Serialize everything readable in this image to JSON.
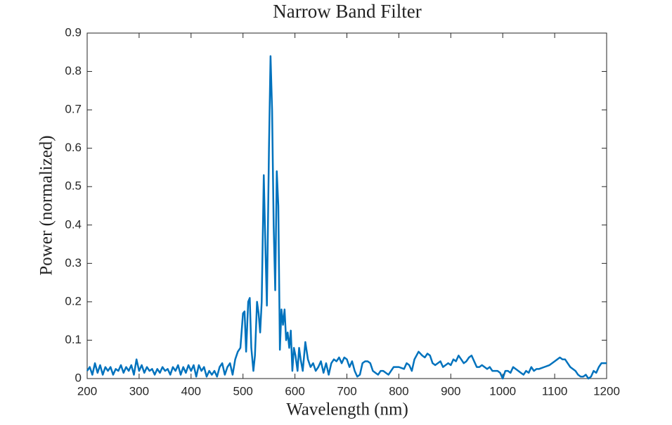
{
  "chart_data": {
    "type": "line",
    "title": "Narrow Band Filter",
    "xlabel": "Wavelength (nm)",
    "ylabel": "Power (normalized)",
    "color": "#0072bd",
    "x": [
      200,
      205,
      210,
      215,
      220,
      225,
      230,
      235,
      240,
      245,
      250,
      255,
      260,
      265,
      270,
      275,
      280,
      285,
      290,
      295,
      300,
      305,
      310,
      315,
      320,
      325,
      330,
      335,
      340,
      345,
      350,
      355,
      360,
      365,
      370,
      375,
      380,
      385,
      390,
      395,
      400,
      405,
      410,
      415,
      420,
      425,
      430,
      435,
      440,
      445,
      450,
      455,
      460,
      465,
      470,
      475,
      480,
      485,
      490,
      495,
      500,
      503,
      506,
      510,
      513,
      516,
      520,
      523,
      527,
      530,
      533,
      536,
      540,
      543,
      546,
      550,
      553,
      556,
      559,
      562,
      565,
      568,
      571,
      574,
      577,
      580,
      583,
      586,
      589,
      592,
      595,
      598,
      601,
      605,
      608,
      611,
      615,
      620,
      625,
      630,
      635,
      640,
      645,
      650,
      655,
      660,
      665,
      670,
      675,
      680,
      685,
      690,
      695,
      700,
      705,
      710,
      715,
      720,
      725,
      730,
      735,
      740,
      745,
      750,
      755,
      760,
      765,
      770,
      775,
      780,
      785,
      790,
      795,
      800,
      810,
      815,
      820,
      825,
      830,
      838,
      845,
      850,
      855,
      860,
      865,
      870,
      880,
      885,
      890,
      895,
      900,
      905,
      910,
      915,
      920,
      925,
      930,
      935,
      940,
      945,
      950,
      955,
      960,
      965,
      970,
      975,
      980,
      990,
      995,
      1000,
      1005,
      1010,
      1015,
      1020,
      1025,
      1030,
      1035,
      1040,
      1045,
      1050,
      1055,
      1060,
      1065,
      1070,
      1080,
      1090,
      1100,
      1110,
      1115,
      1120,
      1125,
      1130,
      1140,
      1145,
      1150,
      1155,
      1160,
      1165,
      1170,
      1175,
      1180,
      1185,
      1190,
      1195,
      1200
    ],
    "values": [
      0.02,
      0.03,
      0.01,
      0.04,
      0.015,
      0.035,
      0.01,
      0.03,
      0.02,
      0.03,
      0.01,
      0.025,
      0.02,
      0.035,
      0.015,
      0.03,
      0.02,
      0.035,
      0.01,
      0.05,
      0.02,
      0.035,
      0.015,
      0.03,
      0.02,
      0.025,
      0.01,
      0.025,
      0.015,
      0.03,
      0.02,
      0.025,
      0.01,
      0.03,
      0.02,
      0.035,
      0.01,
      0.03,
      0.015,
      0.035,
      0.02,
      0.035,
      0.005,
      0.035,
      0.02,
      0.03,
      0.005,
      0.02,
      0.01,
      0.02,
      0.005,
      0.03,
      0.04,
      0.01,
      0.03,
      0.04,
      0.01,
      0.05,
      0.07,
      0.08,
      0.17,
      0.175,
      0.07,
      0.2,
      0.21,
      0.08,
      0.02,
      0.06,
      0.2,
      0.17,
      0.12,
      0.2,
      0.53,
      0.35,
      0.19,
      0.6,
      0.84,
      0.7,
      0.4,
      0.23,
      0.54,
      0.45,
      0.075,
      0.18,
      0.14,
      0.18,
      0.1,
      0.12,
      0.08,
      0.125,
      0.02,
      0.08,
      0.06,
      0.02,
      0.08,
      0.05,
      0.02,
      0.095,
      0.05,
      0.03,
      0.04,
      0.02,
      0.03,
      0.045,
      0.015,
      0.04,
      0.01,
      0.04,
      0.05,
      0.045,
      0.055,
      0.04,
      0.055,
      0.05,
      0.03,
      0.045,
      0.02,
      0.005,
      0.01,
      0.04,
      0.045,
      0.045,
      0.04,
      0.02,
      0.015,
      0.01,
      0.02,
      0.02,
      0.015,
      0.01,
      0.02,
      0.03,
      0.03,
      0.03,
      0.025,
      0.04,
      0.035,
      0.02,
      0.05,
      0.07,
      0.06,
      0.055,
      0.065,
      0.06,
      0.04,
      0.035,
      0.045,
      0.03,
      0.035,
      0.04,
      0.035,
      0.05,
      0.045,
      0.06,
      0.05,
      0.04,
      0.045,
      0.055,
      0.06,
      0.045,
      0.03,
      0.03,
      0.035,
      0.03,
      0.025,
      0.03,
      0.02,
      0.02,
      0.015,
      0,
      0.02,
      0.02,
      0.015,
      0.03,
      0.025,
      0.02,
      0.015,
      0.01,
      0.02,
      0.015,
      0.03,
      0.02,
      0.025,
      0.025,
      0.03,
      0.035,
      0.045,
      0.055,
      0.05,
      0.05,
      0.04,
      0.03,
      0.02,
      0.01,
      0.005,
      0.005,
      0.01,
      0,
      0.005,
      0.02,
      0.015,
      0.03,
      0.04,
      0.04,
      0.04
    ],
    "xlim": [
      200,
      1200
    ],
    "xticks": [
      200,
      300,
      400,
      500,
      600,
      700,
      800,
      900,
      1000,
      1100,
      1200
    ],
    "ylim": [
      0,
      0.9
    ],
    "yticks": [
      0,
      0.1,
      0.2,
      0.3,
      0.4,
      0.5,
      0.6,
      0.7,
      0.8,
      0.9
    ]
  }
}
